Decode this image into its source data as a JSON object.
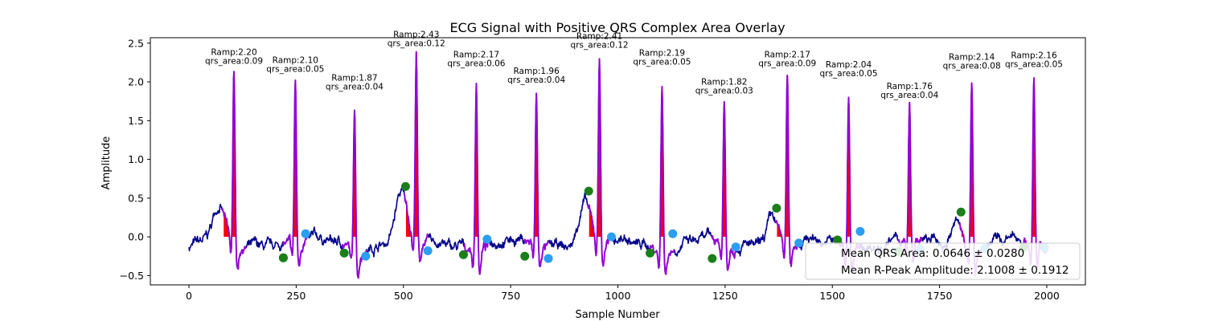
{
  "chart_data": {
    "type": "line",
    "title": "ECG Signal with Positive QRS Complex Area Overlay",
    "xlabel": "Sample Number",
    "ylabel": "Amplitude",
    "xlim": [
      -90,
      2090
    ],
    "ylim": [
      -0.62,
      2.57
    ],
    "x_ticks": [
      0,
      250,
      500,
      750,
      1000,
      1250,
      1500,
      1750,
      2000
    ],
    "y_ticks": [
      -0.5,
      0.0,
      0.5,
      1.0,
      1.5,
      2.0,
      2.5
    ],
    "x_tick_labels": [
      "0",
      "250",
      "500",
      "750",
      "1000",
      "1250",
      "1500",
      "1750",
      "2000"
    ],
    "y_tick_labels": [
      "−0.5",
      "0.0",
      "0.5",
      "1.0",
      "1.5",
      "2.0",
      "2.5"
    ],
    "grid": false,
    "colors": {
      "signal": "#00008b",
      "qrs_segment": "#9400d3",
      "qrs_area": "#ff0000",
      "onset_marker": "#1a7f1a",
      "offset_marker": "#2b9ef0"
    },
    "signal_noise_seed": 7,
    "beats": [
      {
        "onset": 220,
        "peak": 105,
        "offset": 272,
        "r_amp": 2.2,
        "qrs_area": 0.09,
        "onset_y": -0.27,
        "offset_y": 0.04,
        "p_wave": 0.47,
        "label": "Ramp:2.20",
        "area_label": "qrs_area:0.09"
      },
      {
        "onset": 220,
        "peak": 248,
        "offset": 272,
        "r_amp": 2.1,
        "qrs_area": 0.05,
        "onset_y": -0.27,
        "offset_y": 0.04,
        "p_wave": 0.05,
        "label": "Ramp:2.10",
        "area_label": "qrs_area:0.05"
      },
      {
        "onset": 362,
        "peak": 386,
        "offset": 412,
        "r_amp": 1.87,
        "qrs_area": 0.04,
        "onset_y": -0.21,
        "offset_y": -0.25,
        "p_wave": 0.05,
        "label": "Ramp:1.87",
        "area_label": "qrs_area:0.04"
      },
      {
        "onset": 505,
        "peak": 530,
        "offset": 557,
        "r_amp": 2.43,
        "qrs_area": 0.12,
        "onset_y": 0.65,
        "offset_y": -0.18,
        "p_wave": 0.65,
        "label": "Ramp:2.43",
        "area_label": "qrs_area:0.12"
      },
      {
        "onset": 640,
        "peak": 670,
        "offset": 695,
        "r_amp": 2.17,
        "qrs_area": 0.06,
        "onset_y": -0.23,
        "offset_y": -0.03,
        "p_wave": 0.05,
        "label": "Ramp:2.17",
        "area_label": "qrs_area:0.06"
      },
      {
        "onset": 783,
        "peak": 810,
        "offset": 838,
        "r_amp": 1.96,
        "qrs_area": 0.04,
        "onset_y": -0.25,
        "offset_y": -0.28,
        "p_wave": 0.05,
        "label": "Ramp:1.96",
        "area_label": "qrs_area:0.04"
      },
      {
        "onset": 932,
        "peak": 957,
        "offset": 985,
        "r_amp": 2.41,
        "qrs_area": 0.12,
        "onset_y": 0.59,
        "offset_y": 0.0,
        "p_wave": 0.59,
        "label": "Ramp:2.41",
        "area_label": "qrs_area:0.12"
      },
      {
        "onset": 1075,
        "peak": 1103,
        "offset": 1128,
        "r_amp": 2.19,
        "qrs_area": 0.05,
        "onset_y": -0.21,
        "offset_y": 0.04,
        "p_wave": 0.05,
        "label": "Ramp:2.19",
        "area_label": "qrs_area:0.05"
      },
      {
        "onset": 1220,
        "peak": 1248,
        "offset": 1275,
        "r_amp": 1.82,
        "qrs_area": 0.03,
        "onset_y": -0.28,
        "offset_y": -0.13,
        "p_wave": 0.05,
        "label": "Ramp:1.82",
        "area_label": "qrs_area:0.03"
      },
      {
        "onset": 1370,
        "peak": 1395,
        "offset": 1422,
        "r_amp": 2.17,
        "qrs_area": 0.09,
        "onset_y": 0.37,
        "offset_y": -0.08,
        "p_wave": 0.4,
        "label": "Ramp:2.17",
        "area_label": "qrs_area:0.09"
      },
      {
        "onset": 1512,
        "peak": 1538,
        "offset": 1565,
        "r_amp": 2.04,
        "qrs_area": 0.05,
        "onset_y": -0.04,
        "offset_y": 0.07,
        "p_wave": 0.05,
        "label": "Ramp:2.04",
        "area_label": "qrs_area:0.05"
      },
      {
        "onset": 1655,
        "peak": 1680,
        "offset": 1705,
        "r_amp": 1.76,
        "qrs_area": 0.04,
        "onset_y": -0.19,
        "offset_y": -0.16,
        "p_wave": 0.05,
        "label": "Ramp:1.76",
        "area_label": "qrs_area:0.04"
      },
      {
        "onset": 1800,
        "peak": 1825,
        "offset": 1855,
        "r_amp": 2.14,
        "qrs_area": 0.08,
        "onset_y": 0.32,
        "offset_y": -0.15,
        "p_wave": 0.35,
        "label": "Ramp:2.14",
        "area_label": "qrs_area:0.08"
      },
      {
        "onset": 1945,
        "peak": 1970,
        "offset": 1995,
        "r_amp": 2.16,
        "qrs_area": 0.05,
        "onset_y": -0.14,
        "offset_y": -0.14,
        "p_wave": 0.05,
        "label": "Ramp:2.16",
        "area_label": "qrs_area:0.05"
      }
    ],
    "legend": {
      "position": "lower-right",
      "entries": [
        "Mean QRS Area: 0.0646 ± 0.0280",
        "Mean R-Peak Amplitude: 2.1008 ± 0.1912"
      ]
    }
  }
}
